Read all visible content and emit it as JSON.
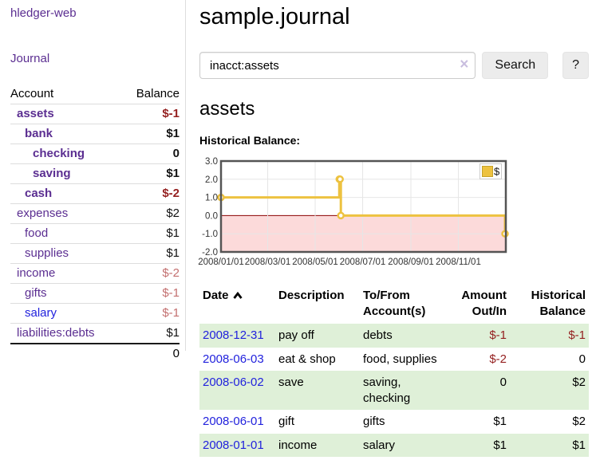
{
  "app": {
    "title": "hledger-web"
  },
  "colors": {
    "link_purple": "#5b2e91",
    "link_blue": "#2222dd",
    "negative": "#941f1f",
    "negative_soft": "#c36f6f",
    "row_green": "#dff0d8",
    "chart_gold": "#edc240",
    "chart_border": "#545454",
    "zero_line": "#8b0000",
    "negative_region": "#fcdada"
  },
  "sidebar": {
    "journal_link": "Journal",
    "accounts_header": {
      "account": "Account",
      "balance": "Balance"
    },
    "accounts": [
      {
        "name": "assets",
        "level": 1,
        "bold": true,
        "balance": "$-1",
        "balance_style": "neg"
      },
      {
        "name": "bank",
        "level": 2,
        "bold": true,
        "balance": "$1",
        "balance_style": "pos"
      },
      {
        "name": "checking",
        "level": 3,
        "bold": true,
        "balance": "0",
        "balance_style": "pos"
      },
      {
        "name": "saving",
        "level": 3,
        "bold": true,
        "balance": "$1",
        "balance_style": "pos"
      },
      {
        "name": "cash",
        "level": 2,
        "bold": true,
        "balance": "$-2",
        "balance_style": "neg"
      },
      {
        "name": "expenses",
        "level": 1,
        "bold": false,
        "balance": "$2",
        "balance_style": "pos"
      },
      {
        "name": "food",
        "level": 2,
        "bold": false,
        "balance": "$1",
        "balance_style": "pos"
      },
      {
        "name": "supplies",
        "level": 2,
        "bold": false,
        "balance": "$1",
        "balance_style": "pos"
      },
      {
        "name": "income",
        "level": 1,
        "bold": false,
        "balance": "$-2",
        "balance_style": "neg-soft"
      },
      {
        "name": "gifts",
        "level": 2,
        "bold": false,
        "balance": "$-1",
        "balance_style": "neg-soft"
      },
      {
        "name": "salary",
        "level": 2,
        "bold": false,
        "link_style": "blue",
        "balance": "$-1",
        "balance_style": "neg-soft"
      },
      {
        "name": "liabilities:debts",
        "level": 1,
        "bold": false,
        "balance": "$1",
        "balance_style": "pos"
      }
    ],
    "total": "0"
  },
  "header": {
    "title": "sample.journal"
  },
  "search": {
    "value": "inacct:assets",
    "clear_icon": "×",
    "button": "Search",
    "help_button": "?"
  },
  "account_page": {
    "title": "assets",
    "chart_label": "Historical Balance:"
  },
  "chart_data": {
    "type": "line",
    "title": "Historical Balance",
    "step": true,
    "series": [
      {
        "name": "$",
        "color": "#edc240",
        "points": [
          [
            "2008-01-01",
            0,
            1
          ],
          [
            "2008-06-01",
            152,
            2
          ],
          [
            "2008-06-02",
            153,
            2
          ],
          [
            "2008-06-03",
            154,
            0
          ],
          [
            "2008-12-31",
            365,
            -1
          ]
        ]
      }
    ],
    "x_range": [
      "2008-01-01",
      "2009-01-01"
    ],
    "x_total_days": 366,
    "ylim": [
      -2,
      3
    ],
    "yticks": [
      3,
      2,
      1,
      0,
      -1,
      -2
    ],
    "ytick_labels": [
      "3.0",
      "2.0",
      "1.0",
      "0.0",
      "-1.0",
      "-2.0"
    ],
    "xtick_days": [
      0,
      60,
      121,
      182,
      244,
      305
    ],
    "xtick_labels": [
      "2008/01/01",
      "2008/03/01",
      "2008/05/01",
      "2008/07/01",
      "2008/09/01",
      "2008/11/01"
    ],
    "grid": true,
    "legend_position": "top-right",
    "zero_line_color": "#8b0000",
    "negative_region_color": "#fcdada"
  },
  "register": {
    "columns": [
      "Date",
      "Description",
      "To/From Account(s)",
      "Amount Out/In",
      "Historical Balance"
    ],
    "sort_icon": "chevron-up",
    "rows": [
      {
        "date": "2008-12-31",
        "description": "pay off",
        "accounts": "debts",
        "amount": "$-1",
        "amount_style": "neg",
        "balance": "$-1",
        "balance_style": "neg",
        "shaded": true
      },
      {
        "date": "2008-06-03",
        "description": "eat & shop",
        "accounts": "food, supplies",
        "amount": "$-2",
        "amount_style": "neg",
        "balance": "0",
        "balance_style": "pos",
        "shaded": false
      },
      {
        "date": "2008-06-02",
        "description": "save",
        "accounts": "saving, checking",
        "amount": "0",
        "amount_style": "pos",
        "balance": "$2",
        "balance_style": "pos",
        "shaded": true
      },
      {
        "date": "2008-06-01",
        "description": "gift",
        "accounts": "gifts",
        "amount": "$1",
        "amount_style": "pos",
        "balance": "$2",
        "balance_style": "pos",
        "shaded": false
      },
      {
        "date": "2008-01-01",
        "description": "income",
        "accounts": "salary",
        "amount": "$1",
        "amount_style": "pos",
        "balance": "$1",
        "balance_style": "pos",
        "shaded": true
      }
    ]
  }
}
